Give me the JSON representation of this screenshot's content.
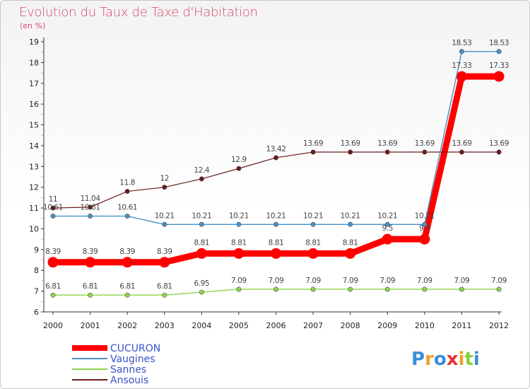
{
  "chart_data": {
    "type": "line",
    "title": "Evolution du Taux de Taxe d'Habitation",
    "unit_label": "(en %)",
    "xlabel": "",
    "ylabel": "",
    "x": [
      "2000",
      "2001",
      "2002",
      "2003",
      "2004",
      "2005",
      "2006",
      "2007",
      "2008",
      "2009",
      "2010",
      "2011",
      "2012"
    ],
    "ylim": [
      6,
      19
    ],
    "yticks": [
      6,
      7,
      8,
      9,
      10,
      11,
      12,
      13,
      14,
      15,
      16,
      17,
      18,
      19
    ],
    "grid": false,
    "legend_position": "bottom-left",
    "series": [
      {
        "name": "CUCURON",
        "color": "#ff0000",
        "values": [
          8.39,
          8.39,
          8.39,
          8.39,
          8.81,
          8.81,
          8.81,
          8.81,
          8.81,
          9.5,
          9.5,
          17.33,
          17.33
        ],
        "labels": [
          "8.39",
          "8.39",
          "8.39",
          "8.39",
          "8.81",
          "8.81",
          "8.81",
          "8.81",
          "8.81",
          "9.5",
          "9.5",
          "17.33",
          "17.33"
        ]
      },
      {
        "name": "Vaugines",
        "color": "#4a90c4",
        "values": [
          10.61,
          10.61,
          10.61,
          10.21,
          10.21,
          10.21,
          10.21,
          10.21,
          10.21,
          10.21,
          10.21,
          18.53,
          18.53
        ],
        "labels": [
          "10.61",
          "10.61",
          "10.61",
          "10.21",
          "10.21",
          "10.21",
          "10.21",
          "10.21",
          "10.21",
          "10.21",
          "10.21",
          "18.53",
          "18.53"
        ]
      },
      {
        "name": "Sannes",
        "color": "#8fd44a",
        "values": [
          6.81,
          6.81,
          6.81,
          6.81,
          6.95,
          7.09,
          7.09,
          7.09,
          7.09,
          7.09,
          7.09,
          7.09,
          7.09
        ],
        "labels": [
          "6.81",
          "6.81",
          "6.81",
          "6.81",
          "6.95",
          "7.09",
          "7.09",
          "7.09",
          "7.09",
          "7.09",
          "7.09",
          "7.09",
          "7.09"
        ]
      },
      {
        "name": "Ansouis",
        "color": "#6b1a1a",
        "values": [
          11,
          11.04,
          11.8,
          12,
          12.4,
          12.9,
          13.42,
          13.69,
          13.69,
          13.69,
          13.69,
          13.69,
          13.69
        ],
        "labels": [
          "11",
          "11.04",
          "11.8",
          "12",
          "12.4",
          "12.9",
          "13.42",
          "13.69",
          "13.69",
          "13.69",
          "13.69",
          "13.69",
          "13.69"
        ]
      }
    ]
  },
  "logo": {
    "letters": [
      "P",
      "r",
      "o",
      "x",
      "i",
      "t",
      "i"
    ],
    "colors": [
      "#3a8fd8",
      "#f0a020",
      "#3a8fd8",
      "#e83030",
      "#f0a020",
      "#8ccf3a",
      "#3a8fd8"
    ]
  }
}
